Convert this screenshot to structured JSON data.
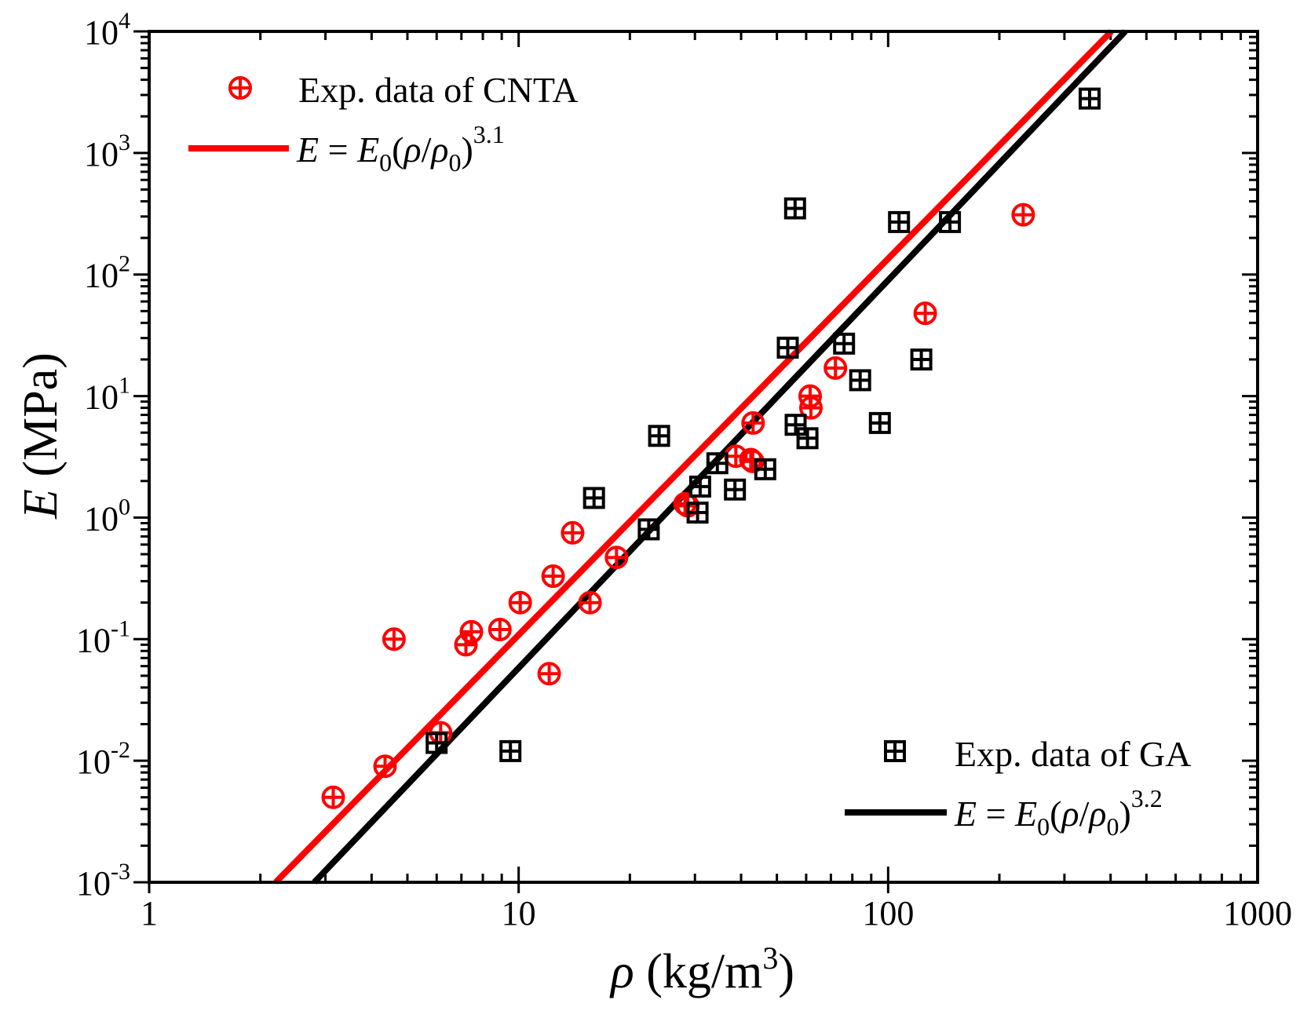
{
  "chart_data": {
    "type": "scatter",
    "x_scale": "log",
    "y_scale": "log",
    "xlim": [
      1,
      1000
    ],
    "ylim": [
      0.001,
      10000
    ],
    "x_ticks": [
      {
        "value": 1,
        "label": "1"
      },
      {
        "value": 10,
        "label": "10"
      },
      {
        "value": 100,
        "label": "100"
      },
      {
        "value": 1000,
        "label": "1000"
      }
    ],
    "y_ticks": [
      {
        "value": 0.001,
        "base": "10",
        "exp": "-3"
      },
      {
        "value": 0.01,
        "base": "10",
        "exp": "-2"
      },
      {
        "value": 0.1,
        "base": "10",
        "exp": "-1"
      },
      {
        "value": 1,
        "base": "10",
        "exp": "0"
      },
      {
        "value": 10,
        "base": "10",
        "exp": "1"
      },
      {
        "value": 100,
        "base": "10",
        "exp": "2"
      },
      {
        "value": 1000,
        "base": "10",
        "exp": "3"
      },
      {
        "value": 10000,
        "base": "10",
        "exp": "4"
      }
    ],
    "xlabel": {
      "symbol": "ρ",
      "unit": " (kg/m",
      "sup": "3",
      "close": ")"
    },
    "ylabel": {
      "symbol": "E",
      "unit": " (MPa)"
    },
    "series": [
      {
        "name": "Exp. data of CNTA",
        "kind": "scatter",
        "marker": "circle-plus",
        "color": "#ff0000",
        "points": [
          [
            3.15,
            0.005
          ],
          [
            4.35,
            0.009
          ],
          [
            4.6,
            0.1
          ],
          [
            6.15,
            0.017
          ],
          [
            7.2,
            0.09
          ],
          [
            7.45,
            0.115
          ],
          [
            8.9,
            0.12
          ],
          [
            10.1,
            0.2
          ],
          [
            12.1,
            0.052
          ],
          [
            12.4,
            0.33
          ],
          [
            14.0,
            0.75
          ],
          [
            15.6,
            0.2
          ],
          [
            18.4,
            0.47
          ],
          [
            28.2,
            1.3
          ],
          [
            28.7,
            1.25
          ],
          [
            38.7,
            3.2
          ],
          [
            42.5,
            3.0
          ],
          [
            43.0,
            2.9
          ],
          [
            43.1,
            6.0
          ],
          [
            61.5,
            10.0
          ],
          [
            61.8,
            8.0
          ],
          [
            72.0,
            17.0
          ],
          [
            126.0,
            48.0
          ],
          [
            232.0,
            310.0
          ]
        ]
      },
      {
        "name": "Exp. data of GA",
        "kind": "scatter",
        "marker": "square-plus",
        "color": "#000000",
        "points": [
          [
            6.0,
            0.014
          ],
          [
            9.5,
            0.012
          ],
          [
            16.0,
            1.45
          ],
          [
            22.5,
            0.8
          ],
          [
            24.0,
            4.7
          ],
          [
            30.5,
            1.1
          ],
          [
            31.0,
            1.8
          ],
          [
            34.5,
            2.8
          ],
          [
            38.5,
            1.7
          ],
          [
            46.5,
            2.5
          ],
          [
            53.5,
            25.0
          ],
          [
            56.0,
            350.0
          ],
          [
            56.2,
            5.8
          ],
          [
            60.5,
            4.5
          ],
          [
            76.0,
            27.0
          ],
          [
            84.0,
            13.5
          ],
          [
            95.0,
            6.0
          ],
          [
            107.0,
            270.0
          ],
          [
            123.0,
            20.0
          ],
          [
            147.0,
            270.0
          ],
          [
            351.0,
            2800.0
          ]
        ]
      },
      {
        "name": "E = E0(ρ/ρ0)^3.1",
        "kind": "line",
        "color": "#ff0000",
        "exponent": "3.1",
        "x_range": [
          2.2,
          480
        ],
        "points": [
          [
            2.2,
            0.001
          ],
          [
            477,
            17000
          ]
        ]
      },
      {
        "name": "E = E0(ρ/ρ0)^3.2",
        "kind": "line",
        "color": "#000000",
        "exponent": "3.2",
        "x_range": [
          2.8,
          540
        ],
        "points": [
          [
            2.8,
            0.001
          ],
          [
            536,
            19000
          ]
        ]
      }
    ],
    "legends": [
      {
        "placement": "top-left",
        "entries": [
          {
            "series": 0,
            "label": "Exp. data of CNTA"
          },
          {
            "series": 2,
            "formula": {
              "lhs": "E",
              "eq": " = ",
              "e": "E",
              "e_sub": "0",
              "open": "(",
              "rho": "ρ",
              "slash": "/",
              "rho0": "ρ",
              "rho0_sub": "0",
              "close": ")",
              "exp": "3.1"
            }
          }
        ]
      },
      {
        "placement": "bottom-right",
        "entries": [
          {
            "series": 1,
            "label": "Exp. data of GA"
          },
          {
            "series": 3,
            "formula": {
              "lhs": "E",
              "eq": " = ",
              "e": "E",
              "e_sub": "0",
              "open": "(",
              "rho": "ρ",
              "slash": "/",
              "rho0": "ρ",
              "rho0_sub": "0",
              "close": ")",
              "exp": "3.2"
            }
          }
        ]
      }
    ],
    "grid": false
  }
}
